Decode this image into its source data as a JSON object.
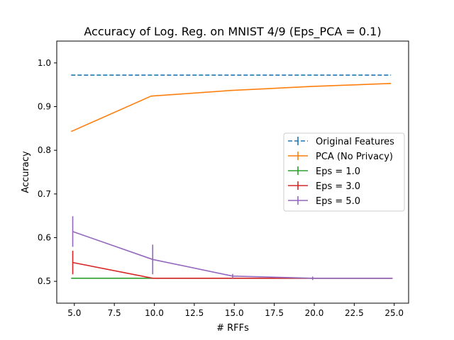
{
  "chart_data": {
    "type": "line",
    "title": "Accuracy of Log. Reg. on MNIST 4/9 (Eps_PCA = 0.1)",
    "xlabel": "# RFFs",
    "ylabel": "Accuracy",
    "xlim": [
      3.9,
      25.9
    ],
    "ylim": [
      0.45,
      1.05
    ],
    "xticks": [
      5.0,
      7.5,
      10.0,
      12.5,
      15.0,
      17.5,
      20.0,
      22.5,
      25.0
    ],
    "xtick_labels": [
      "5.0",
      "7.5",
      "10.0",
      "12.5",
      "15.0",
      "17.5",
      "20.0",
      "22.5",
      "25.0"
    ],
    "yticks": [
      0.5,
      0.6,
      0.7,
      0.8,
      0.9,
      1.0
    ],
    "ytick_labels": [
      "0.5",
      "0.6",
      "0.7",
      "0.8",
      "0.9",
      "1.0"
    ],
    "grid": false,
    "legend_position": "center-right",
    "series": [
      {
        "name": "Original Features",
        "color": "#1f77b4",
        "dashed": true,
        "x": [
          4.8,
          9.8,
          14.8,
          19.8,
          24.8
        ],
        "y": [
          0.972,
          0.972,
          0.972,
          0.972,
          0.972
        ],
        "err": [
          0,
          0,
          0,
          0,
          0
        ]
      },
      {
        "name": "PCA (No Privacy)",
        "color": "#ff7f0e",
        "dashed": false,
        "x": [
          4.8,
          9.8,
          14.8,
          19.8,
          24.8
        ],
        "y": [
          0.843,
          0.924,
          0.937,
          0.946,
          0.953
        ],
        "err": [
          0,
          0,
          0,
          0,
          0
        ]
      },
      {
        "name": "Eps = 1.0",
        "color": "#2ca02c",
        "dashed": false,
        "x": [
          4.8,
          9.8,
          14.8,
          19.8,
          24.8
        ],
        "y": [
          0.507,
          0.507,
          0.507,
          0.507,
          0.507
        ],
        "err": [
          0,
          0,
          0,
          0,
          0
        ]
      },
      {
        "name": "Eps = 3.0",
        "color": "#d62728",
        "dashed": false,
        "x": [
          4.9,
          9.9,
          14.9,
          19.9,
          24.9
        ],
        "y": [
          0.543,
          0.507,
          0.507,
          0.507,
          0.507
        ],
        "err": [
          0.027,
          0,
          0,
          0,
          0
        ]
      },
      {
        "name": "Eps = 5.0",
        "color": "#9467bd",
        "dashed": false,
        "x": [
          4.9,
          9.9,
          14.9,
          19.9,
          24.9
        ],
        "y": [
          0.614,
          0.55,
          0.512,
          0.507,
          0.507
        ],
        "err": [
          0.035,
          0.034,
          0.005,
          0.004,
          0
        ]
      }
    ]
  }
}
